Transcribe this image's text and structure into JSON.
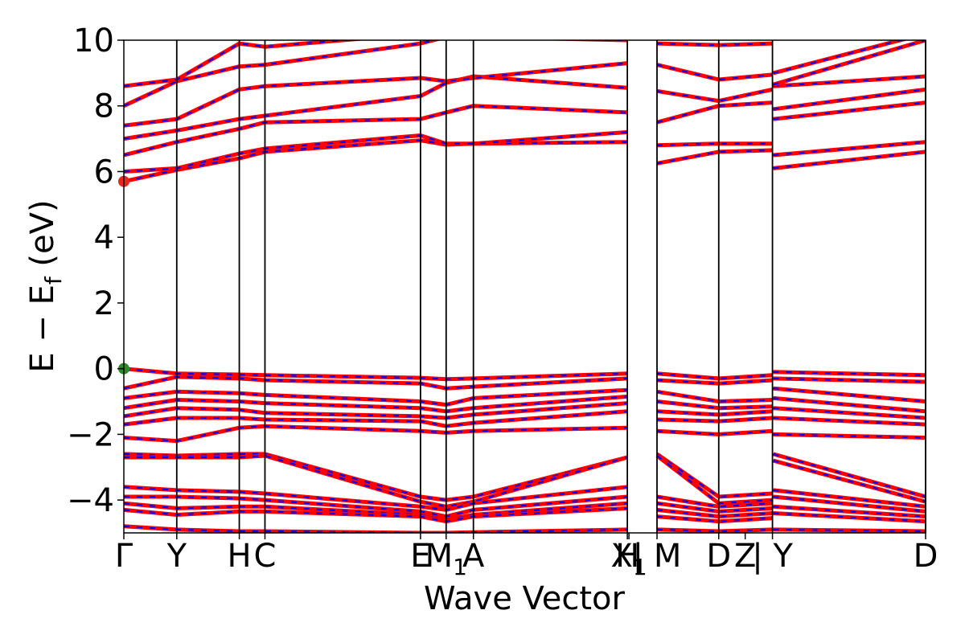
{
  "chart_data": {
    "type": "line",
    "title": "",
    "xlabel": "Wave Vector",
    "ylabel": "E − E",
    "ylabel_sub": "f",
    "ylabel_unit": " (eV)",
    "ylim": [
      -5,
      10
    ],
    "xlim": [
      0,
      1
    ],
    "yticks": [
      {
        "v": 10,
        "label": "10"
      },
      {
        "v": 8,
        "label": "8"
      },
      {
        "v": 6,
        "label": "6"
      },
      {
        "v": 4,
        "label": "4"
      },
      {
        "v": 2,
        "label": "2"
      },
      {
        "v": 0,
        "label": "0"
      },
      {
        "v": -2,
        "label": "−2"
      },
      {
        "v": -4,
        "label": "−4"
      }
    ],
    "kpoints": [
      {
        "x": 0.0,
        "label": "Γ"
      },
      {
        "x": 0.066,
        "label": "Y"
      },
      {
        "x": 0.144,
        "label": "H"
      },
      {
        "x": 0.176,
        "label": "C"
      },
      {
        "x": 0.37,
        "label": "E"
      },
      {
        "x": 0.402,
        "label": "M",
        "sub": "1"
      },
      {
        "x": 0.436,
        "label": "A"
      },
      {
        "x": 0.628,
        "label": "H"
      },
      {
        "x": 0.63,
        "label": "X",
        "sub": "1"
      },
      {
        "x": 0.665,
        "label": "| M"
      },
      {
        "x": 0.742,
        "label": "D"
      },
      {
        "x": 0.775,
        "label": "Z"
      },
      {
        "x": 0.809,
        "label": "| Y"
      },
      {
        "x": 1.0,
        "label": "D"
      }
    ],
    "vlines": [
      0.066,
      0.144,
      0.176,
      0.37,
      0.402,
      0.436,
      0.628,
      0.665,
      0.742,
      0.809,
      1.0
    ],
    "segments": [
      [
        0.0,
        0.628
      ],
      [
        0.665,
        0.809
      ],
      [
        0.809,
        1.0
      ]
    ],
    "series": [
      {
        "role": "spin-up",
        "color": "#ff0000"
      },
      {
        "role": "spin-down",
        "color": "#0000ff",
        "dash": true
      }
    ],
    "bands": {
      "conduction": [
        {
          "start": 5.7,
          "values": [
            6.05,
            6.4,
            6.6,
            6.95,
            6.82,
            6.85,
            6.9,
            6.25,
            6.6,
            6.65,
            6.1,
            6.6
          ]
        },
        {
          "start": 6.0,
          "values": [
            6.1,
            6.55,
            6.7,
            7.1,
            6.85,
            6.85,
            7.2,
            6.8,
            6.85,
            6.85,
            6.5,
            6.9
          ]
        },
        {
          "start": 6.5,
          "values": [
            6.9,
            7.3,
            7.5,
            7.6,
            7.8,
            8.0,
            7.8,
            7.5,
            8.0,
            8.1,
            7.6,
            8.1
          ]
        },
        {
          "start": 7.0,
          "values": [
            7.25,
            7.6,
            7.7,
            8.3,
            8.7,
            8.9,
            8.55,
            8.45,
            8.15,
            8.5,
            7.9,
            8.5
          ]
        },
        {
          "start": 7.4,
          "values": [
            7.6,
            8.5,
            8.6,
            8.85,
            8.75,
            8.85,
            9.3,
            9.25,
            8.8,
            8.95,
            8.6,
            8.9
          ]
        },
        {
          "start": 8.0,
          "values": [
            8.75,
            9.2,
            9.25,
            9.9,
            10.1,
            10.1,
            10.0,
            9.9,
            9.85,
            9.9,
            8.65,
            10.0
          ]
        },
        {
          "start": 8.6,
          "values": [
            8.8,
            9.9,
            9.8,
            10.2,
            10.2,
            10.2,
            10.2,
            10.2,
            10.2,
            10.2,
            9.0,
            10.2
          ]
        }
      ],
      "valence": [
        {
          "start": 0.0,
          "values": [
            -0.15,
            -0.18,
            -0.2,
            -0.28,
            -0.32,
            -0.3,
            -0.15,
            -0.15,
            -0.3,
            -0.2,
            -0.1,
            -0.2
          ]
        },
        {
          "start": -0.6,
          "values": [
            -0.25,
            -0.3,
            -0.35,
            -0.45,
            -0.6,
            -0.55,
            -0.3,
            -0.35,
            -0.45,
            -0.35,
            -0.3,
            -0.4
          ]
        },
        {
          "start": -0.9,
          "values": [
            -0.7,
            -0.75,
            -0.8,
            -1.0,
            -1.1,
            -0.9,
            -0.65,
            -0.7,
            -1.0,
            -0.95,
            -0.6,
            -1.0
          ]
        },
        {
          "start": -1.2,
          "values": [
            -0.95,
            -1.0,
            -1.05,
            -1.2,
            -1.3,
            -1.2,
            -0.85,
            -1.0,
            -1.2,
            -1.15,
            -0.9,
            -1.3
          ]
        },
        {
          "start": -1.45,
          "values": [
            -1.2,
            -1.25,
            -1.35,
            -1.45,
            -1.5,
            -1.4,
            -1.05,
            -1.3,
            -1.4,
            -1.3,
            -1.2,
            -1.5
          ]
        },
        {
          "start": -1.7,
          "values": [
            -1.5,
            -1.5,
            -1.55,
            -1.6,
            -1.75,
            -1.65,
            -1.3,
            -1.55,
            -1.6,
            -1.5,
            -1.5,
            -1.7
          ]
        },
        {
          "start": -2.1,
          "values": [
            -2.2,
            -1.8,
            -1.75,
            -1.9,
            -1.95,
            -1.9,
            -1.8,
            -1.9,
            -2.0,
            -1.9,
            -2.0,
            -2.1
          ]
        },
        {
          "start": -2.6,
          "values": [
            -2.65,
            -2.6,
            -2.6,
            -3.9,
            -4.0,
            -3.9,
            -2.7,
            -2.6,
            -3.9,
            -3.8,
            -2.6,
            -3.9
          ]
        },
        {
          "start": -2.7,
          "values": [
            -2.7,
            -2.7,
            -2.65,
            -4.05,
            -4.2,
            -4.05,
            -2.7,
            -2.65,
            -4.1,
            -4.0,
            -2.8,
            -4.05
          ]
        },
        {
          "start": -3.6,
          "values": [
            -3.7,
            -3.75,
            -3.8,
            -4.2,
            -4.3,
            -4.1,
            -3.6,
            -3.9,
            -4.2,
            -4.1,
            -3.7,
            -4.2
          ]
        },
        {
          "start": -3.9,
          "values": [
            -3.9,
            -3.95,
            -4.0,
            -4.35,
            -4.5,
            -4.3,
            -3.9,
            -4.1,
            -4.35,
            -4.25,
            -3.9,
            -4.35
          ]
        },
        {
          "start": -4.1,
          "values": [
            -4.25,
            -4.2,
            -4.2,
            -4.45,
            -4.6,
            -4.45,
            -4.1,
            -4.3,
            -4.5,
            -4.4,
            -4.2,
            -4.5
          ]
        },
        {
          "start": -4.3,
          "values": [
            -4.45,
            -4.35,
            -4.35,
            -4.5,
            -4.65,
            -4.5,
            -4.25,
            -4.5,
            -4.65,
            -4.55,
            -4.4,
            -4.65
          ]
        },
        {
          "start": -4.8,
          "values": [
            -4.9,
            -4.95,
            -4.95,
            -5.0,
            -5.0,
            -4.98,
            -4.9,
            -4.9,
            -4.95,
            -4.9,
            -4.9,
            -4.95
          ]
        }
      ]
    },
    "markers": [
      {
        "role": "cbm",
        "x": 0.0,
        "y": 5.7,
        "color": "#e8281e"
      },
      {
        "role": "vbm",
        "x": 0.0,
        "y": 0.0,
        "color": "#2a8a2a"
      }
    ]
  }
}
